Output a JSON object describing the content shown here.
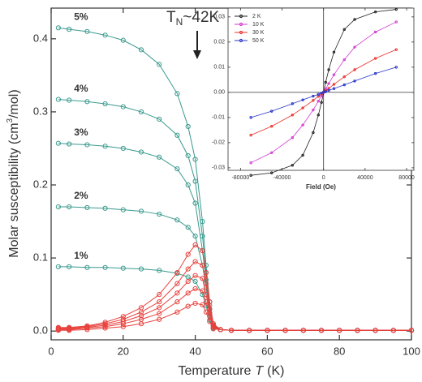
{
  "chart_data": [
    {
      "type": "line",
      "xlabel": {
        "text": "Temperature",
        "italic": "T",
        "suffix": "(K)"
      },
      "ylabel": {
        "text": "Molar susceptibility (cm",
        "superscript": "3",
        "suffix": "/mol)"
      },
      "annotation": {
        "text": "T",
        "subscript": "N",
        "suffix": "~42K"
      },
      "xlim": [
        0,
        100
      ],
      "ylim": [
        -0.012,
        0.442
      ],
      "xticks": [
        0,
        20,
        40,
        60,
        80,
        100
      ],
      "yticks": [
        {
          "value": 0,
          "label": "0.0"
        },
        0.1,
        0.2,
        0.3,
        0.4
      ],
      "x": [
        2,
        5,
        10,
        15,
        20,
        25,
        30,
        35,
        38,
        40,
        42,
        43,
        44,
        45,
        47,
        50,
        55,
        60,
        65,
        70,
        75,
        80,
        85,
        90,
        95,
        100
      ],
      "series": [
        {
          "name": "5%",
          "color": "#3a9a8e",
          "values": [
            0.415,
            0.413,
            0.41,
            0.405,
            0.398,
            0.385,
            0.365,
            0.325,
            0.28,
            0.235,
            0.15,
            0.09,
            0.04,
            0.01,
            0.002,
            0.001,
            0.001,
            0.001,
            0.001,
            0.001,
            0.001,
            0.001,
            0.001,
            0.001,
            0.001,
            0.001
          ]
        },
        {
          "name": "4%",
          "color": "#3a9a8e",
          "values": [
            0.317,
            0.316,
            0.314,
            0.311,
            0.307,
            0.3,
            0.29,
            0.268,
            0.24,
            0.205,
            0.13,
            0.08,
            0.035,
            0.01,
            0.002,
            0.001,
            0.001,
            0.001,
            0.001,
            0.001,
            0.001,
            0.001,
            0.001,
            0.001,
            0.001,
            0.001
          ]
        },
        {
          "name": "3%",
          "color": "#3a9a8e",
          "values": [
            0.257,
            0.256,
            0.255,
            0.253,
            0.25,
            0.245,
            0.238,
            0.222,
            0.2,
            0.175,
            0.11,
            0.07,
            0.03,
            0.008,
            0.002,
            0.001,
            0.001,
            0.001,
            0.001,
            0.001,
            0.001,
            0.001,
            0.001,
            0.001,
            0.001,
            0.001
          ]
        },
        {
          "name": "2%",
          "color": "#3a9a8e",
          "values": [
            0.17,
            0.17,
            0.169,
            0.168,
            0.166,
            0.164,
            0.16,
            0.152,
            0.142,
            0.13,
            0.09,
            0.06,
            0.025,
            0.006,
            0.002,
            0.001,
            0.001,
            0.001,
            0.001,
            0.001,
            0.001,
            0.001,
            0.001,
            0.001,
            0.001,
            0.001
          ]
        },
        {
          "name": "1%",
          "color": "#3a9a8e",
          "values": [
            0.088,
            0.088,
            0.087,
            0.087,
            0.086,
            0.085,
            0.083,
            0.079,
            0.074,
            0.068,
            0.05,
            0.035,
            0.015,
            0.004,
            0.002,
            0.001,
            0.001,
            0.001,
            0.001,
            0.001,
            0.001,
            0.001,
            0.001,
            0.001,
            0.001,
            0.001
          ]
        },
        {
          "color": "#e8413c",
          "values": [
            0.005,
            0.005,
            0.007,
            0.012,
            0.02,
            0.032,
            0.05,
            0.08,
            0.105,
            0.118,
            0.11,
            0.08,
            0.04,
            0.01,
            0.002,
            0.001,
            0.001,
            0.001,
            0.001,
            0.001,
            0.001,
            0.001,
            0.001,
            0.001,
            0.001,
            0.001
          ]
        },
        {
          "color": "#e8413c",
          "values": [
            0.004,
            0.004,
            0.006,
            0.01,
            0.016,
            0.026,
            0.04,
            0.065,
            0.085,
            0.095,
            0.09,
            0.065,
            0.03,
            0.008,
            0.002,
            0.001,
            0.001,
            0.001,
            0.001,
            0.001,
            0.001,
            0.001,
            0.001,
            0.001,
            0.001,
            0.001
          ]
        },
        {
          "color": "#e8413c",
          "values": [
            0.003,
            0.003,
            0.005,
            0.008,
            0.013,
            0.021,
            0.032,
            0.052,
            0.068,
            0.076,
            0.072,
            0.05,
            0.025,
            0.006,
            0.002,
            0.001,
            0.001,
            0.001,
            0.001,
            0.001,
            0.001,
            0.001,
            0.001,
            0.001,
            0.001,
            0.001
          ]
        },
        {
          "color": "#e8413c",
          "values": [
            0.002,
            0.002,
            0.004,
            0.006,
            0.01,
            0.016,
            0.024,
            0.04,
            0.052,
            0.058,
            0.055,
            0.04,
            0.02,
            0.005,
            0.002,
            0.001,
            0.001,
            0.001,
            0.001,
            0.001,
            0.001,
            0.001,
            0.001,
            0.001,
            0.001,
            0.001
          ]
        },
        {
          "color": "#e8413c",
          "values": [
            0.001,
            0.001,
            0.002,
            0.004,
            0.006,
            0.01,
            0.016,
            0.026,
            0.034,
            0.038,
            0.036,
            0.026,
            0.013,
            0.003,
            0.002,
            0.001,
            0.001,
            0.001,
            0.001,
            0.001,
            0.001,
            0.001,
            0.001,
            0.001,
            0.001,
            0.001
          ]
        }
      ]
    },
    {
      "type": "line",
      "xlabel": {
        "text": "Field (Oe)"
      },
      "xlim": [
        -92000,
        87000
      ],
      "ylim": [
        -0.031,
        0.0335
      ],
      "xticks": [
        -80000,
        -40000,
        0,
        40000,
        80000
      ],
      "yticks": [
        0.03,
        0.02,
        0.01,
        {
          "value": 0,
          "label": "0.00"
        },
        -0.01,
        -0.02,
        -0.03
      ],
      "zero_lines": true,
      "legend": "top-left",
      "x": [
        -70000,
        -50000,
        -30000,
        -20000,
        -10000,
        -5000,
        -2000,
        0,
        2000,
        5000,
        10000,
        20000,
        30000,
        50000,
        70000
      ],
      "series": [
        {
          "name": "2 K",
          "color": "#222222",
          "values": [
            -0.033,
            -0.032,
            -0.029,
            -0.025,
            -0.016,
            -0.009,
            -0.004,
            0,
            0.004,
            0.009,
            0.016,
            0.025,
            0.029,
            0.032,
            0.033
          ]
        },
        {
          "name": "10 K",
          "color": "#d03ad0",
          "values": [
            -0.028,
            -0.024,
            -0.018,
            -0.013,
            -0.007,
            -0.0035,
            -0.0014,
            0,
            0.0014,
            0.0035,
            0.007,
            0.013,
            0.018,
            0.024,
            0.028
          ]
        },
        {
          "name": "30 K",
          "color": "#e8312c",
          "values": [
            -0.017,
            -0.0135,
            -0.009,
            -0.0062,
            -0.0032,
            -0.0016,
            -0.0006,
            0,
            0.0006,
            0.0016,
            0.0032,
            0.0062,
            0.009,
            0.0135,
            0.017
          ]
        },
        {
          "name": "50 K",
          "color": "#2a35c8",
          "values": [
            -0.01,
            -0.0075,
            -0.0045,
            -0.003,
            -0.0015,
            -0.0008,
            -0.0003,
            0,
            0.0003,
            0.0008,
            0.0015,
            0.003,
            0.0045,
            0.0075,
            0.01
          ]
        }
      ]
    }
  ]
}
